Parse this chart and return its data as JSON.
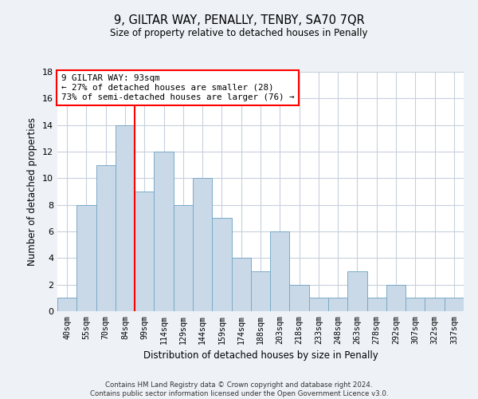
{
  "title": "9, GILTAR WAY, PENALLY, TENBY, SA70 7QR",
  "subtitle": "Size of property relative to detached houses in Penally",
  "xlabel": "Distribution of detached houses by size in Penally",
  "ylabel": "Number of detached properties",
  "bar_labels": [
    "40sqm",
    "55sqm",
    "70sqm",
    "84sqm",
    "99sqm",
    "114sqm",
    "129sqm",
    "144sqm",
    "159sqm",
    "174sqm",
    "188sqm",
    "203sqm",
    "218sqm",
    "233sqm",
    "248sqm",
    "263sqm",
    "278sqm",
    "292sqm",
    "307sqm",
    "322sqm",
    "337sqm"
  ],
  "bar_values": [
    1,
    8,
    11,
    14,
    9,
    12,
    8,
    10,
    7,
    4,
    3,
    6,
    2,
    1,
    1,
    3,
    1,
    2,
    1,
    1,
    1
  ],
  "bar_color": "#c9d9e8",
  "bar_edge_color": "#7aaac8",
  "bar_width": 1.0,
  "ylim": [
    0,
    18
  ],
  "yticks": [
    0,
    2,
    4,
    6,
    8,
    10,
    12,
    14,
    16,
    18
  ],
  "red_line_x": 3.5,
  "annotation_box_text": "9 GILTAR WAY: 93sqm\n← 27% of detached houses are smaller (28)\n73% of semi-detached houses are larger (76) →",
  "footer_line1": "Contains HM Land Registry data © Crown copyright and database right 2024.",
  "footer_line2": "Contains public sector information licensed under the Open Government Licence v3.0.",
  "bg_color": "#eef2f7",
  "plot_bg_color": "#ffffff",
  "grid_color": "#c8d0dc"
}
